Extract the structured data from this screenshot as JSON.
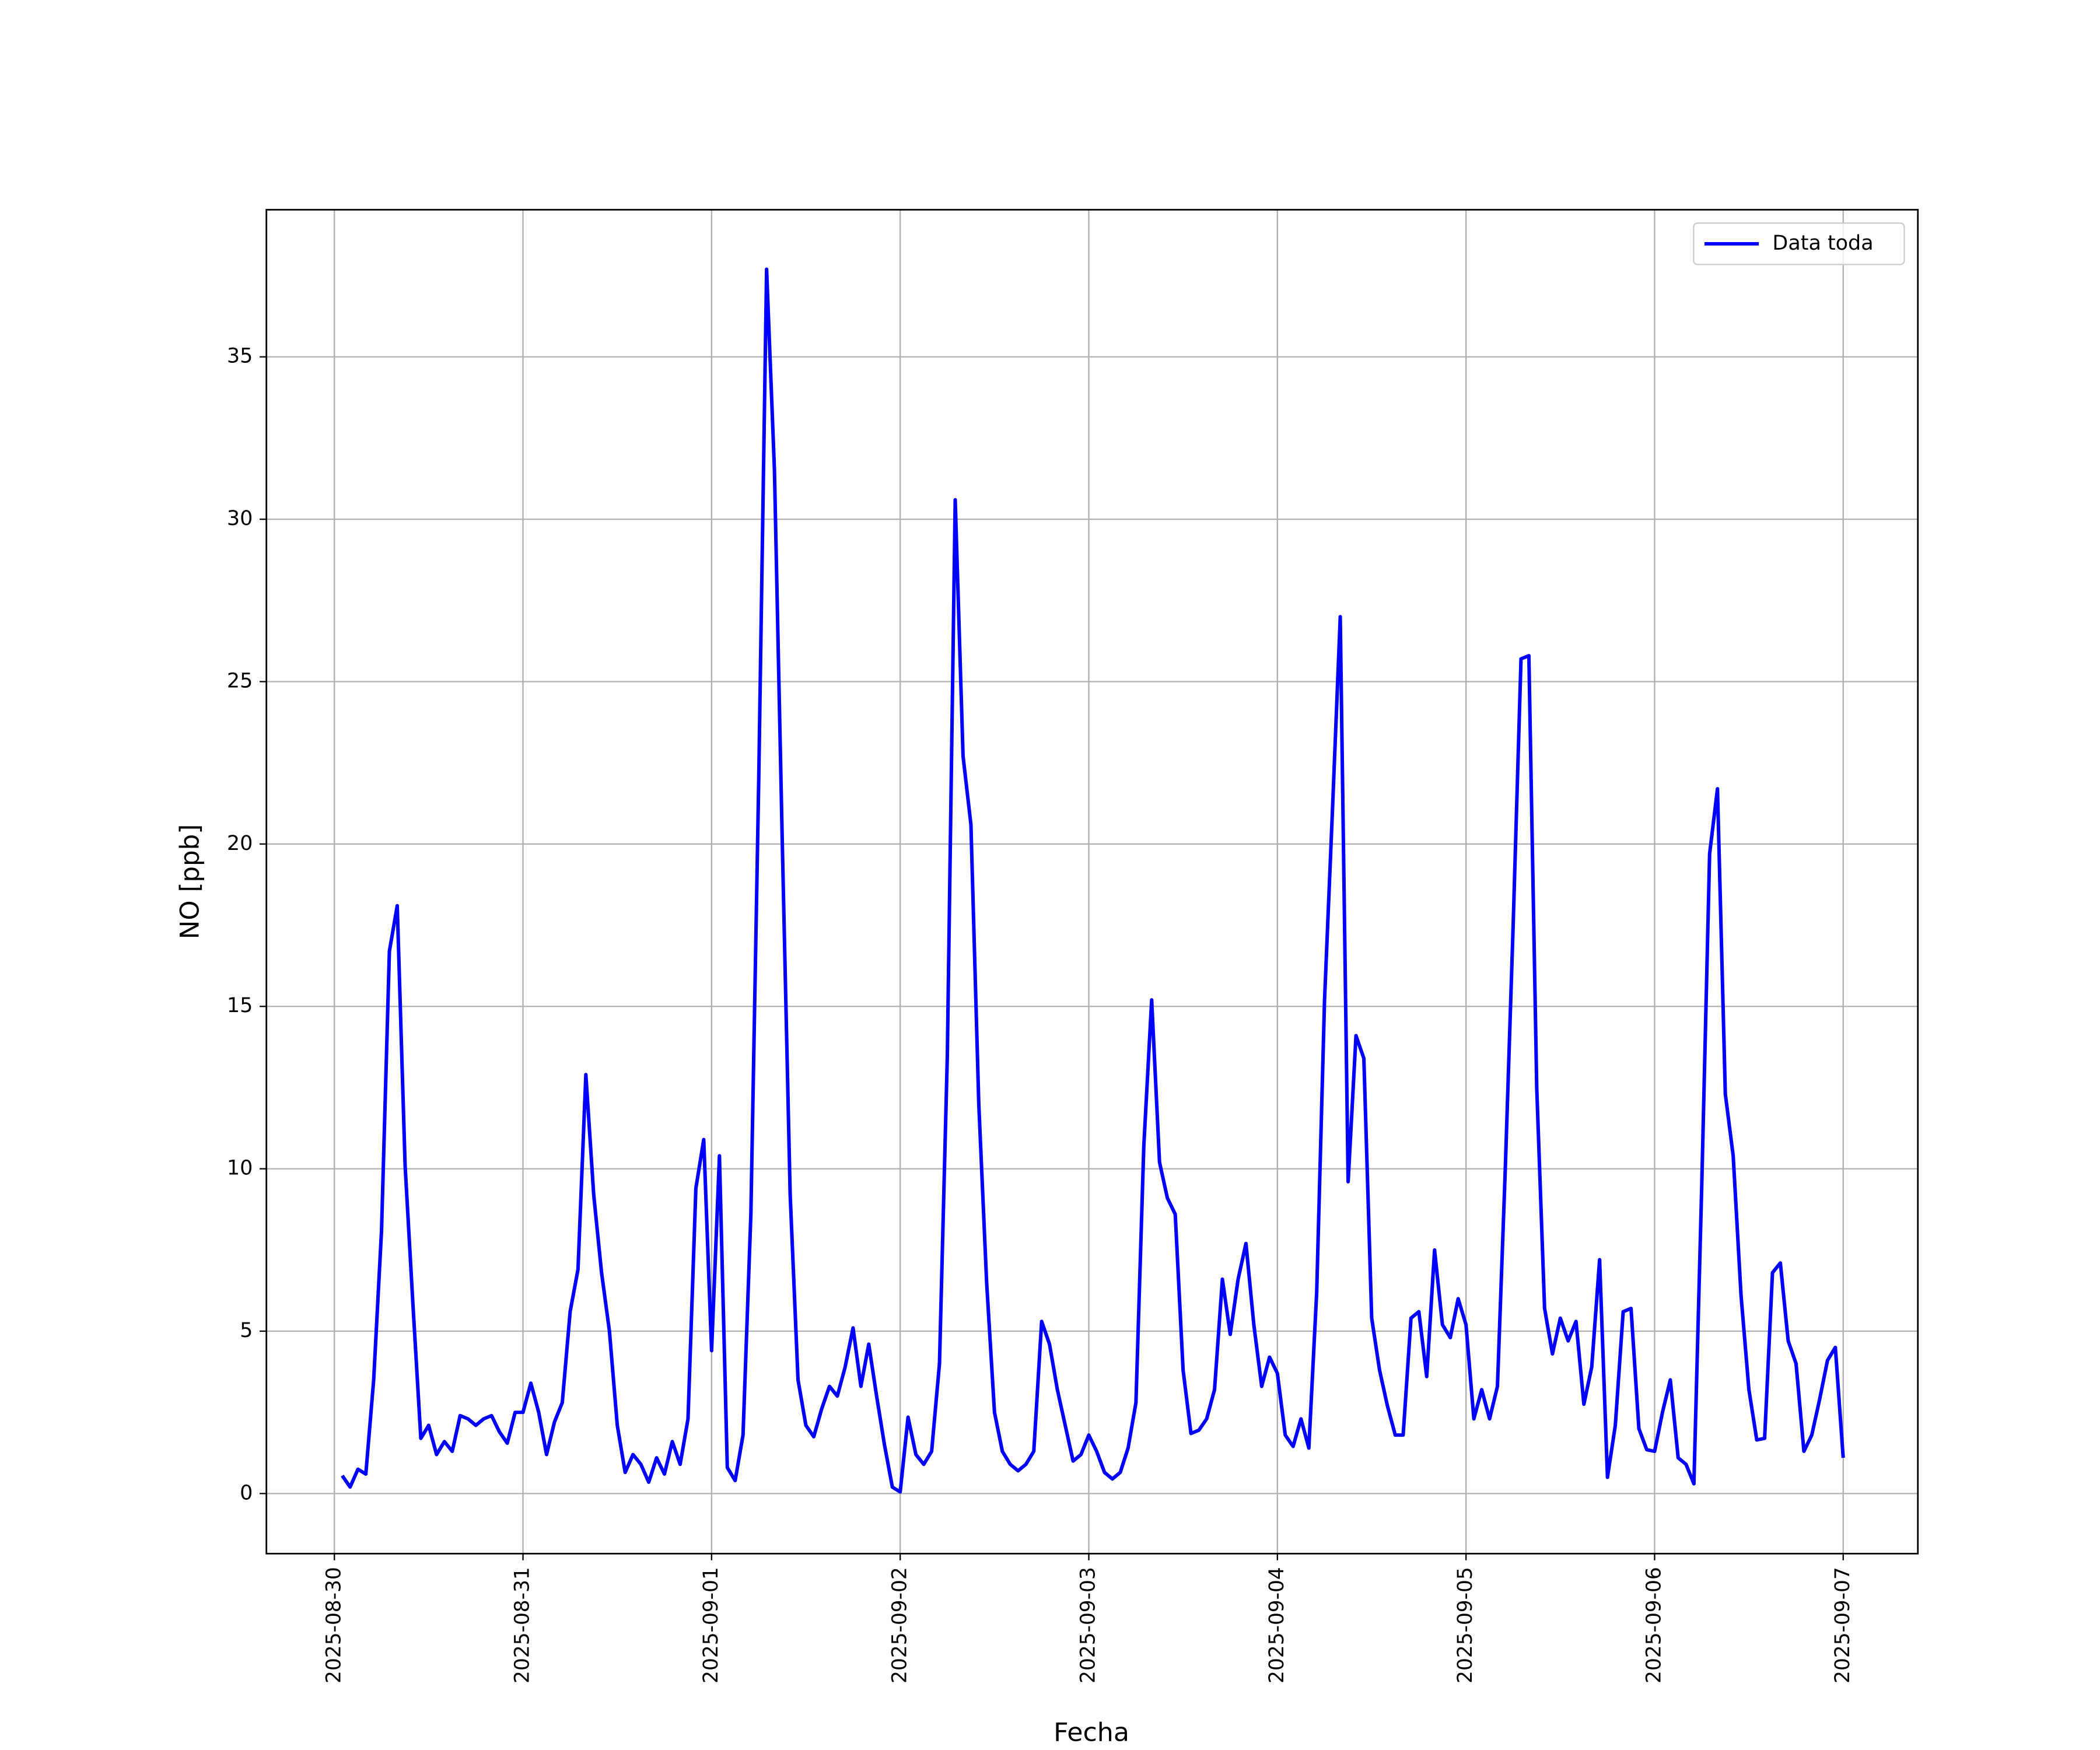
{
  "chart_data": {
    "type": "line",
    "xlabel": "Fecha",
    "ylabel": "NO [ppb]",
    "x": [
      "2025-08-30 01:00",
      "2025-08-30 02:00",
      "2025-08-30 03:00",
      "2025-08-30 04:00",
      "2025-08-30 05:00",
      "2025-08-30 06:00",
      "2025-08-30 07:00",
      "2025-08-30 08:00",
      "2025-08-30 09:00",
      "2025-08-30 10:00",
      "2025-08-30 11:00",
      "2025-08-30 12:00",
      "2025-08-30 13:00",
      "2025-08-30 14:00",
      "2025-08-30 15:00",
      "2025-08-30 16:00",
      "2025-08-30 17:00",
      "2025-08-30 18:00",
      "2025-08-30 19:00",
      "2025-08-30 20:00",
      "2025-08-30 21:00",
      "2025-08-30 22:00",
      "2025-08-30 23:00",
      "2025-08-31 00:00",
      "2025-08-31 01:00",
      "2025-08-31 02:00",
      "2025-08-31 03:00",
      "2025-08-31 04:00",
      "2025-08-31 05:00",
      "2025-08-31 06:00",
      "2025-08-31 07:00",
      "2025-08-31 08:00",
      "2025-08-31 09:00",
      "2025-08-31 10:00",
      "2025-08-31 11:00",
      "2025-08-31 12:00",
      "2025-08-31 13:00",
      "2025-08-31 14:00",
      "2025-08-31 15:00",
      "2025-08-31 16:00",
      "2025-08-31 17:00",
      "2025-08-31 18:00",
      "2025-08-31 19:00",
      "2025-08-31 20:00",
      "2025-08-31 21:00",
      "2025-08-31 22:00",
      "2025-08-31 23:00",
      "2025-09-01 00:00",
      "2025-09-01 01:00",
      "2025-09-01 02:00",
      "2025-09-01 03:00",
      "2025-09-01 04:00",
      "2025-09-01 05:00",
      "2025-09-01 06:00",
      "2025-09-01 07:00",
      "2025-09-01 08:00",
      "2025-09-01 09:00",
      "2025-09-01 10:00",
      "2025-09-01 11:00",
      "2025-09-01 12:00",
      "2025-09-01 13:00",
      "2025-09-01 14:00",
      "2025-09-01 15:00",
      "2025-09-01 16:00",
      "2025-09-01 17:00",
      "2025-09-01 18:00",
      "2025-09-01 19:00",
      "2025-09-01 20:00",
      "2025-09-01 21:00",
      "2025-09-01 22:00",
      "2025-09-01 23:00",
      "2025-09-02 00:00",
      "2025-09-02 01:00",
      "2025-09-02 02:00",
      "2025-09-02 03:00",
      "2025-09-02 04:00",
      "2025-09-02 05:00",
      "2025-09-02 06:00",
      "2025-09-02 07:00",
      "2025-09-02 08:00",
      "2025-09-02 09:00",
      "2025-09-02 10:00",
      "2025-09-02 11:00",
      "2025-09-02 12:00",
      "2025-09-02 13:00",
      "2025-09-02 14:00",
      "2025-09-02 15:00",
      "2025-09-02 16:00",
      "2025-09-02 17:00",
      "2025-09-02 18:00",
      "2025-09-02 19:00",
      "2025-09-02 20:00",
      "2025-09-02 21:00",
      "2025-09-02 22:00",
      "2025-09-02 23:00",
      "2025-09-03 00:00",
      "2025-09-03 01:00",
      "2025-09-03 02:00",
      "2025-09-03 03:00",
      "2025-09-03 04:00",
      "2025-09-03 05:00",
      "2025-09-03 06:00",
      "2025-09-03 07:00",
      "2025-09-03 08:00",
      "2025-09-03 09:00",
      "2025-09-03 10:00",
      "2025-09-03 11:00",
      "2025-09-03 12:00",
      "2025-09-03 13:00",
      "2025-09-03 14:00",
      "2025-09-03 15:00",
      "2025-09-03 16:00",
      "2025-09-03 17:00",
      "2025-09-03 18:00",
      "2025-09-03 19:00",
      "2025-09-03 20:00",
      "2025-09-03 21:00",
      "2025-09-03 22:00",
      "2025-09-03 23:00",
      "2025-09-04 00:00",
      "2025-09-04 01:00",
      "2025-09-04 02:00",
      "2025-09-04 03:00",
      "2025-09-04 04:00",
      "2025-09-04 05:00",
      "2025-09-04 06:00",
      "2025-09-04 07:00",
      "2025-09-04 08:00",
      "2025-09-04 09:00",
      "2025-09-04 10:00",
      "2025-09-04 11:00",
      "2025-09-04 12:00",
      "2025-09-04 13:00",
      "2025-09-04 14:00",
      "2025-09-04 15:00",
      "2025-09-04 16:00",
      "2025-09-04 17:00",
      "2025-09-04 18:00",
      "2025-09-04 19:00",
      "2025-09-04 20:00",
      "2025-09-04 21:00",
      "2025-09-04 22:00",
      "2025-09-04 23:00",
      "2025-09-05 00:00",
      "2025-09-05 01:00",
      "2025-09-05 02:00",
      "2025-09-05 03:00",
      "2025-09-05 04:00",
      "2025-09-05 05:00",
      "2025-09-05 06:00",
      "2025-09-05 07:00",
      "2025-09-05 08:00",
      "2025-09-05 09:00",
      "2025-09-05 10:00",
      "2025-09-05 11:00",
      "2025-09-05 12:00",
      "2025-09-05 13:00",
      "2025-09-05 14:00",
      "2025-09-05 15:00",
      "2025-09-05 16:00",
      "2025-09-05 17:00",
      "2025-09-05 18:00",
      "2025-09-05 19:00",
      "2025-09-05 20:00",
      "2025-09-05 21:00",
      "2025-09-05 22:00",
      "2025-09-05 23:00",
      "2025-09-06 00:00",
      "2025-09-06 01:00",
      "2025-09-06 02:00",
      "2025-09-06 03:00",
      "2025-09-06 04:00",
      "2025-09-06 05:00",
      "2025-09-06 06:00",
      "2025-09-06 07:00",
      "2025-09-06 08:00",
      "2025-09-06 09:00",
      "2025-09-06 10:00",
      "2025-09-06 11:00",
      "2025-09-06 12:00",
      "2025-09-06 13:00",
      "2025-09-06 14:00",
      "2025-09-06 15:00",
      "2025-09-06 16:00",
      "2025-09-06 17:00",
      "2025-09-06 18:00",
      "2025-09-06 19:00",
      "2025-09-06 20:00",
      "2025-09-06 21:00",
      "2025-09-06 22:00",
      "2025-09-06 23:00",
      "2025-09-07 00:00"
    ],
    "series": [
      {
        "name": "Data toda",
        "color": "#0000ff",
        "values": [
          0.55,
          0.2,
          0.75,
          0.6,
          3.5,
          8.1,
          16.7,
          18.1,
          10.1,
          5.8,
          1.7,
          2.1,
          1.2,
          1.6,
          1.3,
          2.4,
          2.3,
          2.1,
          2.3,
          2.4,
          1.9,
          1.55,
          2.5,
          2.5,
          3.4,
          2.5,
          1.2,
          2.2,
          2.8,
          5.6,
          6.9,
          12.9,
          9.2,
          6.8,
          5.0,
          2.1,
          0.65,
          1.2,
          0.9,
          0.35,
          1.1,
          0.6,
          1.6,
          0.9,
          2.3,
          9.4,
          10.9,
          4.4,
          10.4,
          0.8,
          0.4,
          1.8,
          8.6,
          22,
          37.7,
          31.5,
          20,
          9.2,
          3.5,
          2.1,
          1.75,
          2.6,
          3.3,
          3.0,
          3.9,
          5.1,
          3.3,
          4.6,
          3.0,
          1.5,
          0.2,
          0.05,
          2.35,
          1.2,
          0.9,
          1.3,
          4.0,
          13.5,
          30.6,
          22.7,
          20.6,
          12,
          6.5,
          2.5,
          1.3,
          0.9,
          0.7,
          0.9,
          1.3,
          5.3,
          4.6,
          3.2,
          2.1,
          1.0,
          1.2,
          1.8,
          1.3,
          0.65,
          0.45,
          0.65,
          1.4,
          2.8,
          10.7,
          15.2,
          10.2,
          9.1,
          8.6,
          3.8,
          1.85,
          1.95,
          2.3,
          3.2,
          6.6,
          4.9,
          6.6,
          7.7,
          5.2,
          3.3,
          4.2,
          3.7,
          1.8,
          1.45,
          2.3,
          1.4,
          6.2,
          15.2,
          21,
          27,
          9.6,
          14.1,
          13.4,
          5.4,
          3.8,
          2.7,
          1.8,
          1.8,
          5.4,
          5.6,
          3.6,
          7.5,
          5.2,
          4.8,
          6.0,
          5.2,
          2.3,
          3.2,
          2.3,
          3.3,
          10,
          17.5,
          25.7,
          25.8,
          12.5,
          5.7,
          4.3,
          5.4,
          4.7,
          5.3,
          2.75,
          3.9,
          7.2,
          0.5,
          2.1,
          5.6,
          5.7,
          2.0,
          1.35,
          1.3,
          2.5,
          3.5,
          1.1,
          0.9,
          0.3,
          9.5,
          19.7,
          21.7,
          12.3,
          10.4,
          6.1,
          3.2,
          1.65,
          1.7,
          6.8,
          7.1,
          4.7,
          4.0,
          1.3,
          1.8,
          2.9,
          4.1,
          4.5,
          1.1
        ]
      }
    ],
    "xlim": [
      "2025-08-29 15:21",
      "2025-09-07 09:30"
    ],
    "xticks": [
      "2025-08-30",
      "2025-08-31",
      "2025-09-01",
      "2025-09-02",
      "2025-09-03",
      "2025-09-04",
      "2025-09-05",
      "2025-09-06",
      "2025-09-07"
    ],
    "ylim": [
      -1.85,
      39.53
    ],
    "yticks": [
      0,
      5,
      10,
      15,
      20,
      25,
      30,
      35
    ],
    "grid": true,
    "legend": "upper right"
  }
}
